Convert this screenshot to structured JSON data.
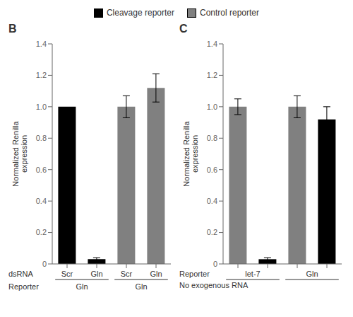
{
  "chart_data": [
    {
      "type": "bar",
      "title": "B",
      "categories": [
        "Scr",
        "Gln",
        "Scr",
        "Gln"
      ],
      "values": [
        1.0,
        0.03,
        1.0,
        1.12
      ],
      "errors": [
        0.0,
        0.01,
        0.07,
        0.09
      ],
      "colors": [
        "#000000",
        "#000000",
        "#808080",
        "#808080"
      ],
      "ylim": [
        0,
        1.4
      ],
      "yticks": [
        0,
        0.2,
        0.4,
        0.6,
        0.8,
        {
          "value": 1,
          "label": "1.0"
        },
        1.2,
        1.4
      ],
      "ylabel": "Normalized Renilla\nexpression",
      "group_labels": [
        "Gln",
        "Gln"
      ],
      "row_labels": [
        "dsRNA",
        "Reporter"
      ],
      "grid": false
    },
    {
      "type": "bar",
      "title": "C",
      "categories": [
        null,
        null,
        null,
        null
      ],
      "values": [
        1.0,
        0.03,
        1.0,
        0.92
      ],
      "errors": [
        0.05,
        0.01,
        0.07,
        0.08
      ],
      "colors": [
        "#808080",
        "#000000",
        "#808080",
        "#000000"
      ],
      "ylim": [
        0,
        1.4
      ],
      "yticks": [
        0,
        0.2,
        0.4,
        0.6,
        0.8,
        {
          "value": 1,
          "label": "1.0"
        },
        1.2,
        1.4
      ],
      "ylabel": "Normalized Renilla\nexpression",
      "group_labels": [
        "let-7",
        "Gln"
      ],
      "row_labels": [
        "Reporter",
        "No exogenous RNA"
      ],
      "grid": false,
      "legend": "top",
      "legend_entries": [
        {
          "label": "Cleavage reporter",
          "color": "#000000"
        },
        {
          "label": "Control reporter",
          "color": "#808080"
        }
      ]
    }
  ]
}
